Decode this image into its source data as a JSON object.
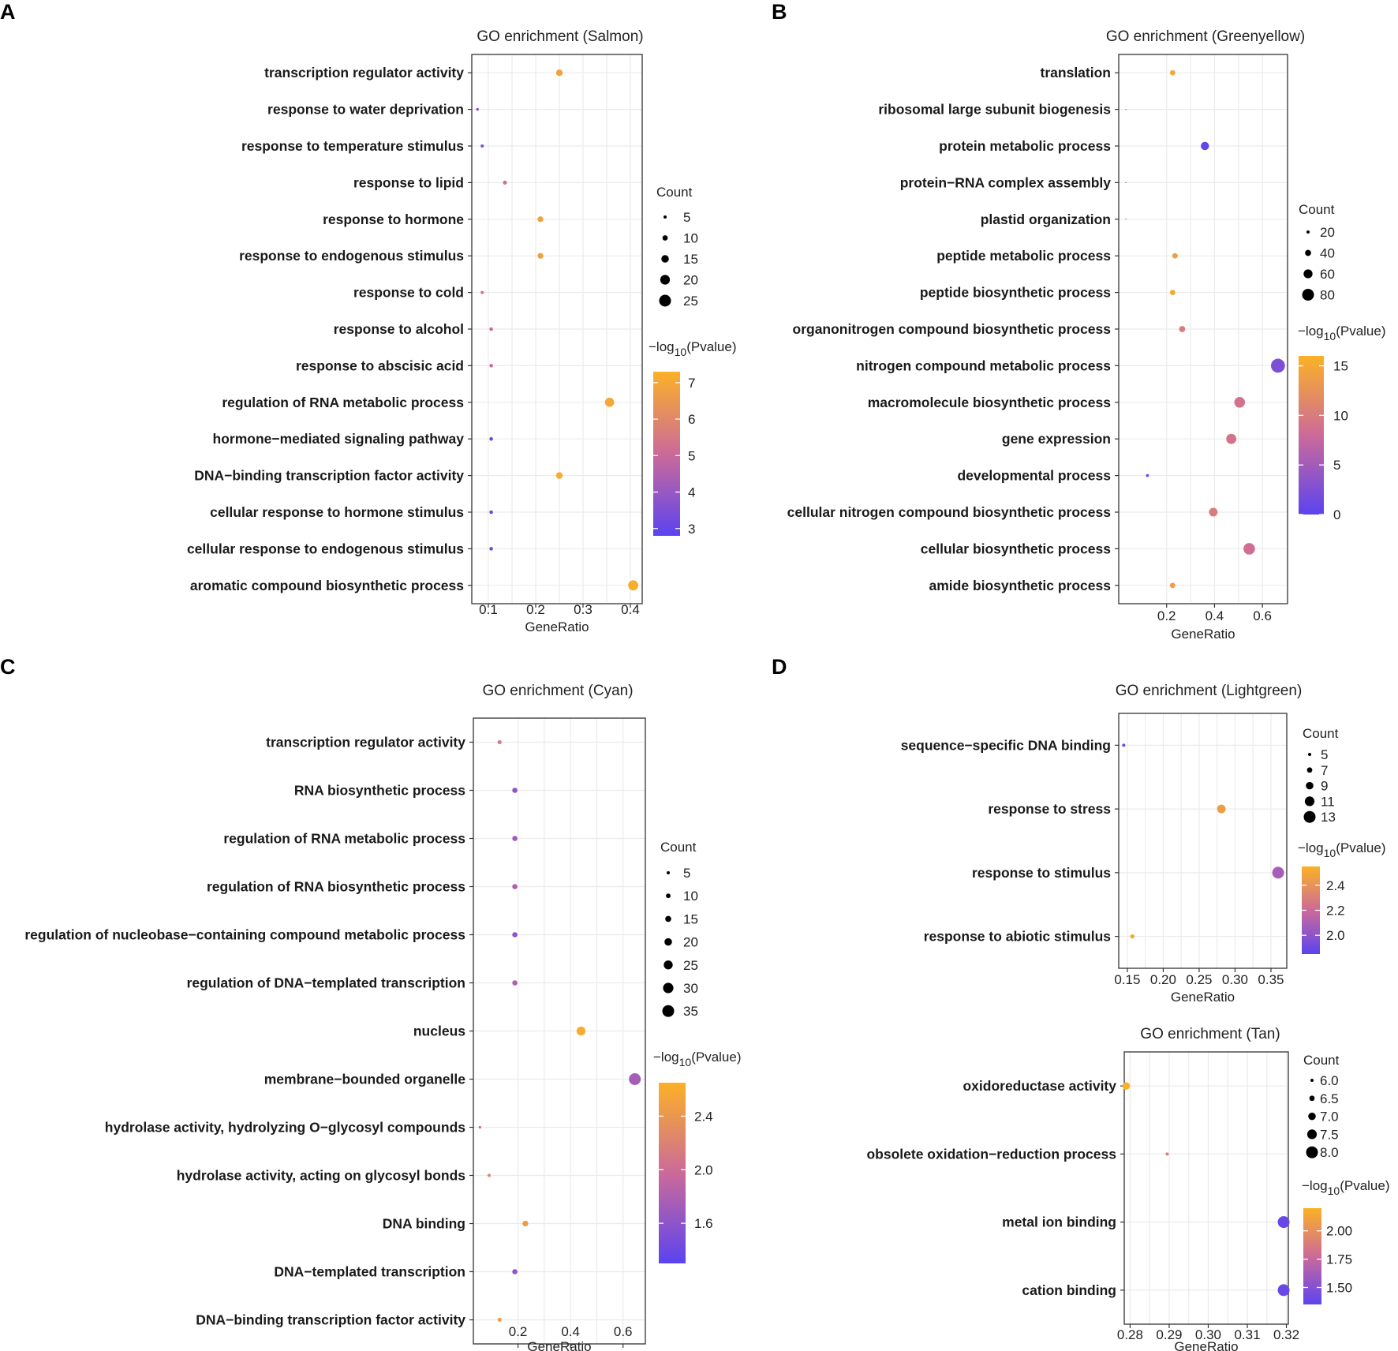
{
  "panel_letters": [
    "A",
    "B",
    "C",
    "D"
  ],
  "axis_title": "GeneRatio",
  "count_title": "Count",
  "pvalue_title": {
    "prefix": "−log",
    "sub": "10",
    "suffix": "(Pvalue)"
  },
  "colors": {
    "low": "#5b43f0",
    "mid": "#cc6a99",
    "high": "#fbb126"
  },
  "chart_data": [
    {
      "type": "scatter",
      "title": "GO enrichment (Salmon)",
      "xlabel": "GeneRatio",
      "xlim": [
        0.065,
        0.425
      ],
      "xticks": [
        0.1,
        0.2,
        0.3,
        0.4
      ],
      "xtick_labels": [
        "0.1",
        "0.2",
        "0.3",
        "0.4"
      ],
      "terms": [
        "transcription regulator activity",
        "response to water deprivation",
        "response to temperature stimulus",
        "response to lipid",
        "response to hormone",
        "response to endogenous stimulus",
        "response to cold",
        "response to alcohol",
        "response to abscisic acid",
        "regulation of RNA metabolic process",
        "hormone−mediated signaling pathway",
        "DNA−binding transcription factor activity",
        "cellular response to hormone stimulus",
        "cellular response to endogenous stimulus",
        "aromatic compound biosynthetic process"
      ],
      "gene_ratio": [
        0.25,
        0.077,
        0.087,
        0.135,
        0.21,
        0.21,
        0.087,
        0.106,
        0.106,
        0.356,
        0.106,
        0.25,
        0.106,
        0.106,
        0.406
      ],
      "count": [
        13,
        4,
        5,
        7,
        11,
        11,
        5,
        6,
        6,
        19,
        6,
        13,
        6,
        6,
        21
      ],
      "neglog10_p": [
        6.8,
        3.6,
        3.4,
        5.3,
        6.8,
        6.8,
        5.3,
        5.0,
        5.0,
        7.0,
        3.0,
        7.1,
        3.1,
        3.1,
        7.2
      ],
      "size_legend": {
        "values": [
          5,
          10,
          15,
          20,
          25
        ],
        "labels": [
          "5",
          "10",
          "15",
          "20",
          "25"
        ]
      },
      "color_legend": {
        "min": 2.8,
        "max": 7.3,
        "ticks": [
          3,
          4,
          5,
          6,
          7
        ],
        "labels": [
          "3",
          "4",
          "5",
          "6",
          "7"
        ]
      }
    },
    {
      "type": "scatter",
      "title": "GO enrichment (Greenyellow)",
      "xlabel": "GeneRatio",
      "xlim": [
        0.0,
        0.705
      ],
      "xticks": [
        0.2,
        0.4,
        0.6
      ],
      "xtick_labels": [
        "0.2",
        "0.4",
        "0.6"
      ],
      "terms": [
        "translation",
        "ribosomal large subunit biogenesis",
        "protein metabolic process",
        "protein−RNA complex assembly",
        "plastid organization",
        "peptide metabolic process",
        "peptide biosynthetic process",
        "organonitrogen compound biosynthetic process",
        "nitrogen compound metabolic process",
        "macromolecule biosynthetic process",
        "gene expression",
        "developmental process",
        "cellular nitrogen compound biosynthetic process",
        "cellular biosynthetic process",
        "amide biosynthetic process"
      ],
      "gene_ratio": [
        0.225,
        0.03,
        0.36,
        0.03,
        0.03,
        0.235,
        0.225,
        0.265,
        0.665,
        0.505,
        0.47,
        0.12,
        0.395,
        0.545,
        0.225
      ],
      "count": [
        35,
        5,
        55,
        5,
        5,
        36,
        35,
        41,
        95,
        72,
        68,
        18,
        58,
        78,
        35
      ],
      "neglog10_p": [
        15.0,
        0.5,
        0.5,
        0.5,
        0.5,
        14.0,
        15.0,
        10.0,
        2.5,
        9.0,
        9.0,
        1.0,
        10.0,
        8.5,
        14.0
      ],
      "size_legend": {
        "values": [
          20,
          40,
          60,
          80
        ],
        "labels": [
          "20",
          "40",
          "60",
          "80"
        ]
      },
      "color_legend": {
        "min": 0.0,
        "max": 16.0,
        "ticks": [
          0,
          5,
          10,
          15
        ],
        "labels": [
          "0",
          "5",
          "10",
          "15"
        ]
      }
    },
    {
      "type": "scatter",
      "title": "GO enrichment (Cyan)",
      "xlabel": "GeneRatio",
      "xlim": [
        0.03,
        0.685
      ],
      "xticks": [
        0.2,
        0.4,
        0.6
      ],
      "xtick_labels": [
        "0.2",
        "0.4",
        "0.6"
      ],
      "terms": [
        "transcription regulator activity",
        "RNA biosynthetic process",
        "regulation of RNA metabolic process",
        "regulation of RNA biosynthetic process",
        "regulation of nucleobase−containing compound metabolic process",
        "regulation of DNA−templated transcription",
        "nucleus",
        "membrane−bounded organelle",
        "hydrolase activity, hydrolyzing O−glycosyl compounds",
        "hydrolase activity, acting on glycosyl bonds",
        "DNA binding",
        "DNA−templated transcription",
        "DNA−binding transcription factor activity"
      ],
      "gene_ratio": [
        0.13,
        0.188,
        0.188,
        0.188,
        0.188,
        0.188,
        0.44,
        0.645,
        0.055,
        0.09,
        0.228,
        0.188,
        0.13
      ],
      "count": [
        8,
        12,
        12,
        12,
        12,
        12,
        25,
        35,
        3,
        5,
        14,
        12,
        8
      ],
      "neglog10_p": [
        2.1,
        1.6,
        1.7,
        1.8,
        1.6,
        1.8,
        2.6,
        1.75,
        2.0,
        2.2,
        2.45,
        1.6,
        2.45
      ],
      "size_legend": {
        "values": [
          5,
          10,
          15,
          20,
          25,
          30,
          35
        ],
        "labels": [
          "5",
          "10",
          "15",
          "20",
          "25",
          "30",
          "35"
        ]
      },
      "color_legend": {
        "min": 1.3,
        "max": 2.65,
        "ticks": [
          1.6,
          2.0,
          2.4
        ],
        "labels": [
          "1.6",
          "2.0",
          "2.4"
        ]
      }
    },
    {
      "type": "scatter",
      "title": "GO enrichment (Lightgreen)",
      "xlabel": "GeneRatio",
      "xlim": [
        0.138,
        0.372
      ],
      "xticks": [
        0.15,
        0.2,
        0.25,
        0.3,
        0.35
      ],
      "xtick_labels": [
        "0.15",
        "0.20",
        "0.25",
        "0.30",
        "0.35"
      ],
      "terms": [
        "sequence−specific DNA binding",
        "response to stress",
        "response to stimulus",
        "response to abiotic stimulus"
      ],
      "gene_ratio": [
        0.145,
        0.281,
        0.36,
        0.157
      ],
      "count": [
        5,
        10,
        13,
        6
      ],
      "neglog10_p": [
        1.9,
        2.45,
        2.08,
        2.5
      ],
      "size_legend": {
        "values": [
          5,
          7,
          9,
          11,
          13
        ],
        "labels": [
          "5",
          "7",
          "9",
          "11",
          "13"
        ]
      },
      "color_legend": {
        "min": 1.85,
        "max": 2.55,
        "ticks": [
          2.0,
          2.2,
          2.4
        ],
        "labels": [
          "2.0",
          "2.2",
          "2.4"
        ]
      }
    },
    {
      "type": "scatter",
      "title": "GO enrichment (Tan)",
      "xlabel": "GeneRatio",
      "xlim": [
        0.2785,
        0.3205
      ],
      "xticks": [
        0.28,
        0.29,
        0.3,
        0.31,
        0.32
      ],
      "xtick_labels": [
        "0.28",
        "0.29",
        "0.30",
        "0.31",
        "0.32"
      ],
      "terms": [
        "oxidoreductase activity",
        "obsolete oxidation−reduction process",
        "metal ion binding",
        "cation binding"
      ],
      "gene_ratio": [
        0.279,
        0.2895,
        0.3193,
        0.3193
      ],
      "count": [
        7,
        6,
        8,
        8
      ],
      "neglog10_p": [
        2.2,
        1.9,
        1.4,
        1.4
      ],
      "size_legend": {
        "values": [
          6.0,
          6.5,
          7.0,
          7.5,
          8.0
        ],
        "labels": [
          "6.0",
          "6.5",
          "7.0",
          "7.5",
          "8.0"
        ]
      },
      "color_legend": {
        "min": 1.35,
        "max": 2.2,
        "ticks": [
          1.5,
          1.75,
          2.0
        ],
        "labels": [
          "1.50",
          "1.75",
          "2.00"
        ]
      }
    }
  ]
}
